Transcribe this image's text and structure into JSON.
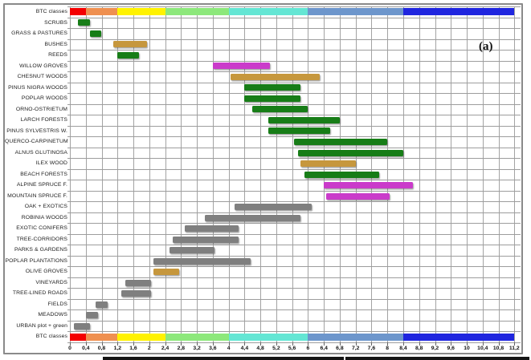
{
  "figure_label": "(a)",
  "chart_data": {
    "type": "bar",
    "orientation": "horizontal-range",
    "title": "",
    "xlabel": "",
    "ylabel": "",
    "xlim": [
      0,
      11.2
    ],
    "grid": true,
    "x_tick_labels": [
      "0",
      "0,4",
      "0,8",
      "1,2",
      "1,6",
      "2",
      "2,4",
      "2,8",
      "3,2",
      "3,6",
      "4",
      "4,4",
      "4,8",
      "5,2",
      "5,6",
      "6",
      "6,4",
      "6,8",
      "7,2",
      "7,6",
      "8",
      "8,4",
      "8,8",
      "9,2",
      "9,6",
      "10",
      "10,4",
      "10,8",
      "11,2"
    ],
    "bar_colors": {
      "green": "#177d17",
      "tan": "#c6973d",
      "magenta": "#ca3bca",
      "gray": "#7f7f7f"
    },
    "color_scale": [
      {
        "range": [
          0,
          0.4
        ],
        "color": "#f40000"
      },
      {
        "range": [
          0.4,
          1.2
        ],
        "color": "#ef9050"
      },
      {
        "range": [
          1.2,
          2.4
        ],
        "color": "#fff200"
      },
      {
        "range": [
          2.4,
          4.0
        ],
        "color": "#8de87b"
      },
      {
        "range": [
          4.0,
          6.0
        ],
        "color": "#64e6d4"
      },
      {
        "range": [
          6.0,
          8.4
        ],
        "color": "#6d96cc"
      },
      {
        "range": [
          8.4,
          11.2
        ],
        "color": "#2026df"
      }
    ],
    "rows": [
      {
        "label": "BTC classes",
        "kind": "scale"
      },
      {
        "label": "SCRUBS",
        "kind": "bar",
        "color": "green",
        "range": [
          0.2,
          0.5
        ]
      },
      {
        "label": "GRASS & PASTURES",
        "kind": "bar",
        "color": "green",
        "range": [
          0.5,
          0.8
        ]
      },
      {
        "label": "BUSHES",
        "kind": "bar",
        "color": "tan",
        "range": [
          1.1,
          1.95
        ]
      },
      {
        "label": "REEDS",
        "kind": "bar",
        "color": "green",
        "range": [
          1.2,
          1.75
        ]
      },
      {
        "label": "WILLOW GROVES",
        "kind": "bar",
        "color": "magenta",
        "range": [
          3.6,
          5.05
        ]
      },
      {
        "label": "CHESNUT WOODS",
        "kind": "bar",
        "color": "tan",
        "range": [
          4.05,
          6.3
        ]
      },
      {
        "label": "PINUS NIGRA WOODS",
        "kind": "bar",
        "color": "green",
        "range": [
          4.4,
          5.8
        ]
      },
      {
        "label": "POPLAR WOODS",
        "kind": "bar",
        "color": "green",
        "range": [
          4.4,
          5.8
        ]
      },
      {
        "label": "ORNO-OSTRIETUM",
        "kind": "bar",
        "color": "green",
        "range": [
          4.6,
          6.0
        ]
      },
      {
        "label": "LARCH FORESTS",
        "kind": "bar",
        "color": "green",
        "range": [
          5.0,
          6.8
        ]
      },
      {
        "label": "PINUS SYLVESTRIS W.",
        "kind": "bar",
        "color": "green",
        "range": [
          5.0,
          6.55
        ]
      },
      {
        "label": "QUERCO-CARPINETUM",
        "kind": "bar",
        "color": "green",
        "range": [
          5.65,
          8.0
        ]
      },
      {
        "label": "ALNUS GLUTINOSA",
        "kind": "bar",
        "color": "green",
        "range": [
          5.75,
          8.4
        ]
      },
      {
        "label": "ILEX WOOD",
        "kind": "bar",
        "color": "tan",
        "range": [
          5.8,
          7.2
        ]
      },
      {
        "label": "BEACH FORESTS",
        "kind": "bar",
        "color": "green",
        "range": [
          5.9,
          7.8
        ]
      },
      {
        "label": "ALPINE SPRUCE F.",
        "kind": "bar",
        "color": "magenta",
        "range": [
          6.4,
          8.65
        ]
      },
      {
        "label": "MOUNTAIN SPRUCE F.",
        "kind": "bar",
        "color": "magenta",
        "range": [
          6.45,
          8.05
        ]
      },
      {
        "label": "OAK + EXOTICS",
        "kind": "bar",
        "color": "gray",
        "range": [
          4.15,
          6.1
        ]
      },
      {
        "label": "ROBINIA WOODS",
        "kind": "bar",
        "color": "gray",
        "range": [
          3.4,
          5.8
        ]
      },
      {
        "label": "EXOTIC CONIFERS",
        "kind": "bar",
        "color": "gray",
        "range": [
          2.9,
          4.25
        ]
      },
      {
        "label": "TREE-CORRIDORS",
        "kind": "bar",
        "color": "gray",
        "range": [
          2.6,
          4.25
        ]
      },
      {
        "label": "PARKS & GARDENS",
        "kind": "bar",
        "color": "gray",
        "range": [
          2.5,
          3.65
        ]
      },
      {
        "label": "POPLAR PLANTATIONS",
        "kind": "bar",
        "color": "gray",
        "range": [
          2.1,
          4.55
        ]
      },
      {
        "label": "OLIVE GROVES",
        "kind": "bar",
        "color": "tan",
        "range": [
          2.1,
          2.75
        ]
      },
      {
        "label": "VINEYARDS",
        "kind": "bar",
        "color": "gray",
        "range": [
          1.4,
          2.05
        ]
      },
      {
        "label": "TREE-LINED ROADS",
        "kind": "bar",
        "color": "gray",
        "range": [
          1.3,
          2.05
        ]
      },
      {
        "label": "FIELDS",
        "kind": "bar",
        "color": "gray",
        "range": [
          0.65,
          0.95
        ]
      },
      {
        "label": "MEADOWS",
        "kind": "bar",
        "color": "gray",
        "range": [
          0.4,
          0.7
        ]
      },
      {
        "label": "URBAN plot + green",
        "kind": "bar",
        "color": "gray",
        "range": [
          0.1,
          0.5
        ]
      },
      {
        "label": "BTC classes",
        "kind": "scale"
      }
    ]
  }
}
